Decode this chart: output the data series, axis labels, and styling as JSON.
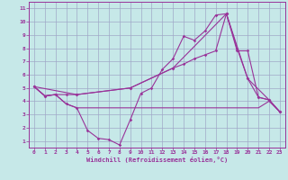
{
  "xlabel": "Windchill (Refroidissement éolien,°C)",
  "xlim": [
    -0.5,
    23.5
  ],
  "ylim": [
    0.5,
    11.5
  ],
  "xticks": [
    0,
    1,
    2,
    3,
    4,
    5,
    6,
    7,
    8,
    9,
    10,
    11,
    12,
    13,
    14,
    15,
    16,
    17,
    18,
    19,
    20,
    21,
    22,
    23
  ],
  "yticks": [
    1,
    2,
    3,
    4,
    5,
    6,
    7,
    8,
    9,
    10,
    11
  ],
  "bg_color": "#c6e8e8",
  "grid_color": "#a0a8c8",
  "line_color": "#993399",
  "lines": [
    {
      "x": [
        0,
        1,
        2,
        3,
        4,
        5,
        6,
        7,
        8,
        9,
        10,
        11,
        12,
        13,
        14,
        15,
        16,
        17,
        18,
        19,
        20,
        21,
        22,
        23
      ],
      "y": [
        5.1,
        4.4,
        4.5,
        3.8,
        3.5,
        1.8,
        1.2,
        1.1,
        0.7,
        2.6,
        4.6,
        5.0,
        6.4,
        7.2,
        8.9,
        8.6,
        9.3,
        10.5,
        10.6,
        8.0,
        5.7,
        4.3,
        4.1,
        3.2
      ],
      "marker": true
    },
    {
      "x": [
        0,
        1,
        2,
        3,
        4,
        5,
        6,
        7,
        8,
        9,
        10,
        11,
        12,
        13,
        14,
        15,
        16,
        17,
        18,
        19,
        20,
        21,
        22,
        23
      ],
      "y": [
        5.1,
        4.4,
        4.5,
        3.8,
        3.5,
        3.5,
        3.5,
        3.5,
        3.5,
        3.5,
        3.5,
        3.5,
        3.5,
        3.5,
        3.5,
        3.5,
        3.5,
        3.5,
        3.5,
        3.5,
        3.5,
        3.5,
        4.0,
        3.2
      ],
      "marker": false
    },
    {
      "x": [
        0,
        4,
        9,
        13,
        18,
        20,
        22,
        23
      ],
      "y": [
        5.1,
        4.5,
        5.0,
        6.5,
        10.6,
        5.7,
        4.1,
        3.2
      ],
      "marker": true
    },
    {
      "x": [
        0,
        1,
        2,
        3,
        4,
        9,
        13,
        14,
        15,
        16,
        17,
        18,
        19,
        20,
        21,
        22,
        23
      ],
      "y": [
        5.1,
        4.4,
        4.5,
        4.5,
        4.5,
        5.0,
        6.5,
        6.8,
        7.2,
        7.5,
        7.8,
        10.6,
        7.8,
        7.8,
        4.3,
        4.1,
        3.2
      ],
      "marker": true
    }
  ]
}
